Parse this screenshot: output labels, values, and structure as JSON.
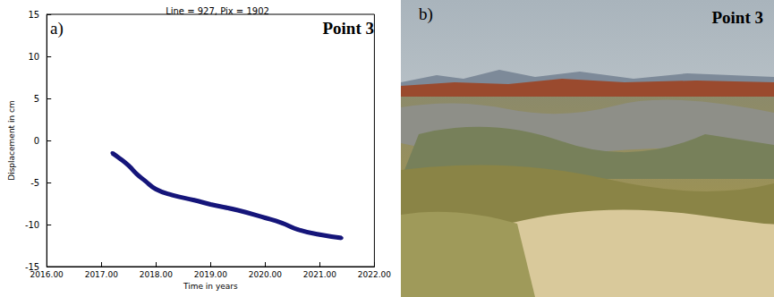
{
  "chart_data": {
    "type": "line",
    "title": "Line = 927, Pix = 1902",
    "panel_label": "a)",
    "annotation": "Point 3",
    "x_label": "Time in years",
    "y_label": "Displacement in cm",
    "x": [
      2017.2,
      2017.35,
      2017.5,
      2017.65,
      2017.8,
      2018.0,
      2018.3,
      2018.7,
      2019.0,
      2019.5,
      2020.0,
      2020.3,
      2020.6,
      2021.0,
      2021.4
    ],
    "values": [
      -1.5,
      -2.2,
      -3.0,
      -4.0,
      -4.8,
      -5.8,
      -6.5,
      -7.1,
      -7.6,
      -8.3,
      -9.2,
      -9.8,
      -10.6,
      -11.2,
      -11.6
    ],
    "color": "#15157a",
    "marker": "circle",
    "line_style": "solid",
    "xlim": [
      2016,
      2022
    ],
    "xticks": [
      {
        "value": 2016,
        "label": "2016.00"
      },
      {
        "value": 2017,
        "label": "2017.00"
      },
      {
        "value": 2018,
        "label": "2018.00"
      },
      {
        "value": 2019,
        "label": "2019.00"
      },
      {
        "value": 2020,
        "label": "2020.00"
      },
      {
        "value": 2021,
        "label": "2021.00"
      },
      {
        "value": 2022,
        "label": "2022.00"
      }
    ],
    "ylim": [
      -15,
      15
    ],
    "yticks": [
      -15,
      -10,
      -5,
      0,
      5,
      10,
      15
    ],
    "grid": false
  },
  "photo": {
    "panel_label": "b)",
    "annotation": "Point 3"
  }
}
